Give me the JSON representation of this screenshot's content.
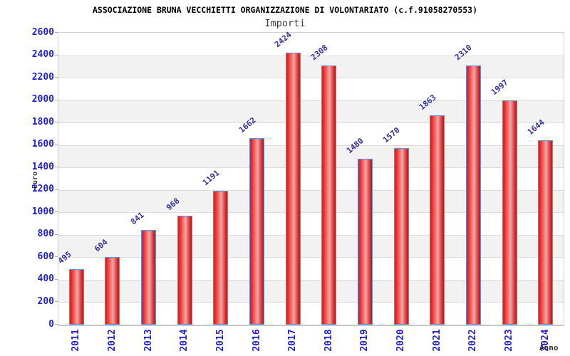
{
  "chart_data": {
    "type": "bar",
    "title": "ASSOCIAZIONE BRUNA VECCHIETTI ORGANIZZAZIONE DI VOLONTARIATO (c.f.91058270553)",
    "subtitle": "Importi",
    "xlabel": "Anno",
    "ylabel": "Euro",
    "categories": [
      "2011",
      "2012",
      "2013",
      "2014",
      "2015",
      "2016",
      "2017",
      "2018",
      "2019",
      "2020",
      "2021",
      "2022",
      "2023",
      "2024"
    ],
    "values": [
      495,
      604,
      841,
      968,
      1191,
      1662,
      2424,
      2308,
      1480,
      1570,
      1863,
      2310,
      1997,
      1644
    ],
    "ylim": [
      0,
      2600
    ],
    "ytick_step": 200,
    "yticks": [
      0,
      200,
      400,
      600,
      800,
      1000,
      1200,
      1400,
      1600,
      1800,
      2000,
      2200,
      2400,
      2600
    ],
    "grid": true,
    "legend_position": "none",
    "colors": {
      "tick_label": "#2222cc",
      "value_label": "#32329b",
      "bar_border": "#5b8fe8",
      "bar_dark": "#b51a1a",
      "bar_bright": "#ec3030",
      "bar_light_mid": "#f3a6a6",
      "band_alt": "#f2f2f2",
      "band_main": "#ffffff",
      "gridline": "#dcdcdc",
      "plot_border": "#cfcfcf",
      "title_color": "#000000",
      "subtitle_color": "#3a3a3a",
      "axis_title_color": "#404040"
    }
  }
}
